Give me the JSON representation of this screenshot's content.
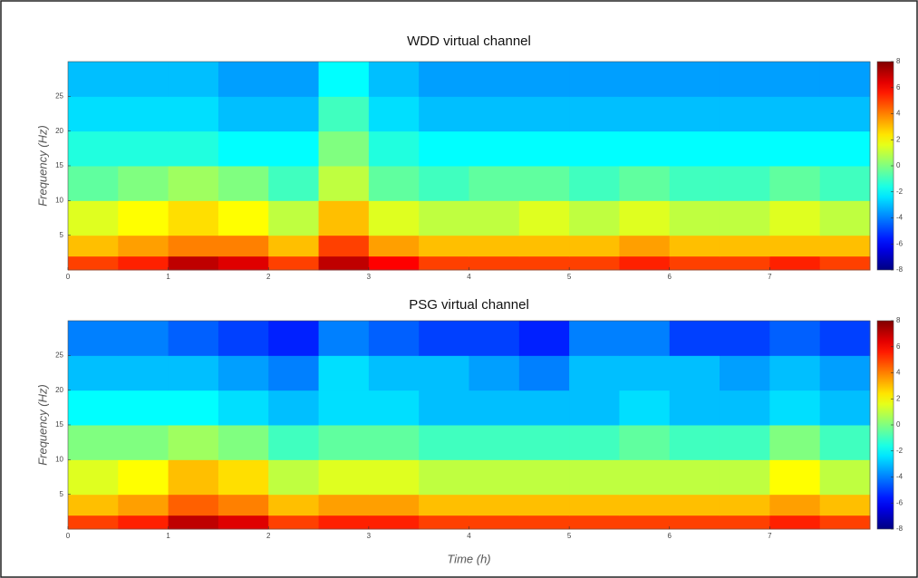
{
  "chart_data": [
    {
      "type": "heatmap",
      "title": "WDD virtual channel",
      "ylabel": "Frequency (Hz)",
      "xbins": [
        0,
        0.5,
        1,
        1.5,
        2,
        2.5,
        3,
        3.5,
        4,
        4.5,
        5,
        5.5,
        6,
        6.5,
        7,
        7.5,
        8
      ],
      "ybins": [
        0,
        2,
        5,
        10,
        15,
        20,
        25,
        30
      ],
      "values": [
        [
          5,
          5.5,
          7,
          6.5,
          5,
          7,
          6,
          5,
          5,
          5,
          5,
          5.5,
          5,
          5,
          5.5,
          5
        ],
        [
          3,
          3.5,
          4,
          4,
          3,
          5,
          3.5,
          3,
          3,
          3,
          3,
          3.5,
          3,
          3,
          3,
          3
        ],
        [
          1.5,
          2,
          2.5,
          2,
          1,
          3,
          1.5,
          1,
          1,
          1.5,
          1,
          1.5,
          1,
          1,
          1.5,
          1
        ],
        [
          -0.5,
          0,
          0.5,
          0,
          -1,
          1,
          -0.5,
          -1,
          -0.5,
          -0.5,
          -1,
          -0.5,
          -1,
          -1,
          -0.5,
          -1
        ],
        [
          -1.5,
          -1.5,
          -1.5,
          -2,
          -2,
          0,
          -1.5,
          -2,
          -2,
          -2,
          -2,
          -2,
          -2,
          -2,
          -2,
          -2
        ],
        [
          -2.5,
          -2.5,
          -2.5,
          -3,
          -3,
          -1,
          -2.5,
          -3,
          -3,
          -3,
          -3,
          -3,
          -3,
          -3,
          -3,
          -3
        ],
        [
          -3,
          -3,
          -3,
          -3.5,
          -3.5,
          -2,
          -3,
          -3.5,
          -3.5,
          -3.5,
          -3.5,
          -3.5,
          -3.5,
          -3.5,
          -3.5,
          -3.5
        ]
      ],
      "xlim": [
        0,
        8
      ],
      "xticks": [
        0,
        1,
        2,
        3,
        4,
        5,
        6,
        7
      ],
      "ylim": [
        0,
        30
      ],
      "yticks": [
        5,
        10,
        15,
        20,
        25
      ],
      "colormap": "jet",
      "clim": [
        -8,
        8
      ],
      "cticks": [
        -8,
        -6,
        -4,
        -2,
        0,
        2,
        4,
        6,
        8
      ]
    },
    {
      "type": "heatmap",
      "title": "PSG virtual channel",
      "ylabel": "Frequency (Hz)",
      "xlabel": "Time (h)",
      "xbins": [
        0,
        0.5,
        1,
        1.5,
        2,
        2.5,
        3,
        3.5,
        4,
        4.5,
        5,
        5.5,
        6,
        6.5,
        7,
        7.5,
        8
      ],
      "ybins": [
        0,
        2,
        5,
        10,
        15,
        20,
        25,
        30
      ],
      "values": [
        [
          5,
          5.5,
          7,
          6.5,
          5,
          5.5,
          5.5,
          5,
          5,
          5,
          5,
          5,
          5,
          5,
          5.5,
          5
        ],
        [
          3,
          3.5,
          4.5,
          4,
          3,
          3.5,
          3.5,
          3,
          3,
          3,
          3,
          3,
          3,
          3,
          3.5,
          3
        ],
        [
          1.5,
          2,
          3,
          2.5,
          1,
          1.5,
          1.5,
          1,
          1,
          1,
          1,
          1,
          1,
          1,
          2,
          1
        ],
        [
          0,
          0,
          0.5,
          0,
          -1,
          -0.5,
          -0.5,
          -1,
          -1,
          -1,
          -1,
          -0.5,
          -1,
          -1,
          0,
          -1
        ],
        [
          -2,
          -2,
          -2,
          -2.5,
          -3,
          -2.5,
          -2.5,
          -3,
          -3,
          -3,
          -3,
          -2.5,
          -3,
          -3,
          -2.5,
          -3
        ],
        [
          -3,
          -3,
          -3,
          -3.5,
          -4,
          -2.5,
          -3,
          -3,
          -3.5,
          -4,
          -3,
          -3,
          -3,
          -3.5,
          -3,
          -3.5
        ],
        [
          -4,
          -4,
          -4.5,
          -5,
          -5.5,
          -4,
          -4.5,
          -5,
          -5,
          -5.5,
          -4,
          -4,
          -5,
          -5,
          -4.5,
          -5
        ]
      ],
      "xlim": [
        0,
        8
      ],
      "xticks": [
        0,
        1,
        2,
        3,
        4,
        5,
        6,
        7
      ],
      "ylim": [
        0,
        30
      ],
      "yticks": [
        5,
        10,
        15,
        20,
        25
      ],
      "colormap": "jet",
      "clim": [
        -8,
        8
      ],
      "cticks": [
        -8,
        -6,
        -4,
        -2,
        0,
        2,
        4,
        6,
        8
      ]
    }
  ]
}
